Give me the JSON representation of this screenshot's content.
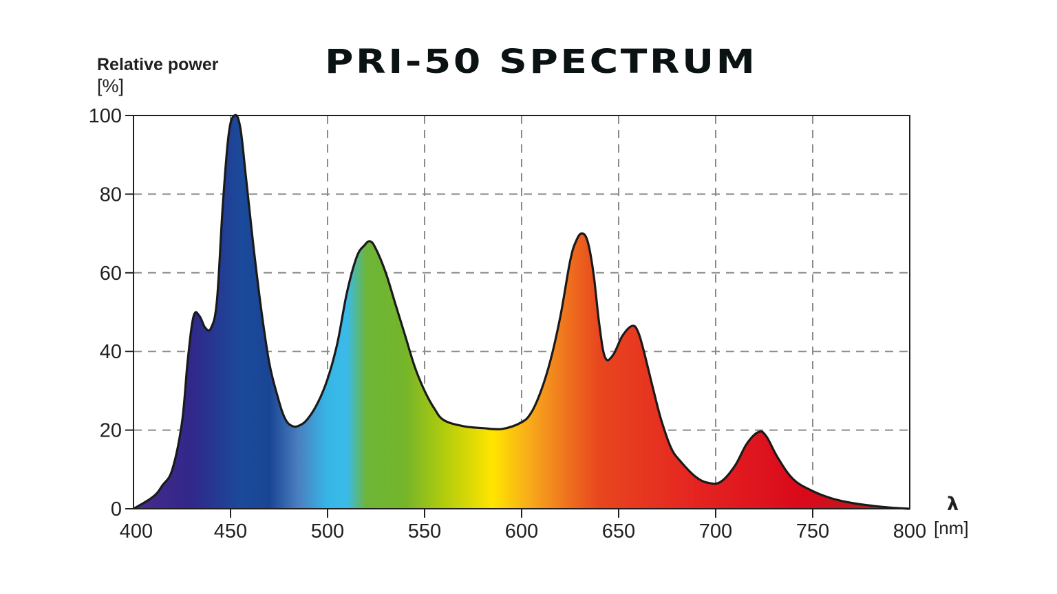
{
  "chart": {
    "title": "PRI-50 SPECTRUM",
    "ylabel": "Relative power",
    "yunit": "[%]",
    "xsymbol": "λ",
    "xunit": "[nm]"
  },
  "colors": {
    "outline": "#1a1a1a",
    "grid": "#8a8a8a",
    "spectrum_stops": [
      {
        "nm": 400,
        "color": "#4a2a8c"
      },
      {
        "nm": 430,
        "color": "#30288a"
      },
      {
        "nm": 455,
        "color": "#1b4a9a"
      },
      {
        "nm": 470,
        "color": "#1a4595"
      },
      {
        "nm": 485,
        "color": "#4a7fc0"
      },
      {
        "nm": 500,
        "color": "#36b6e6"
      },
      {
        "nm": 510,
        "color": "#3abbe8"
      },
      {
        "nm": 520,
        "color": "#6db538"
      },
      {
        "nm": 540,
        "color": "#74b52a"
      },
      {
        "nm": 560,
        "color": "#b1cc0c"
      },
      {
        "nm": 585,
        "color": "#ffe500"
      },
      {
        "nm": 605,
        "color": "#f7a81b"
      },
      {
        "nm": 625,
        "color": "#ee6e1e"
      },
      {
        "nm": 640,
        "color": "#e8461f"
      },
      {
        "nm": 690,
        "color": "#e52421"
      },
      {
        "nm": 745,
        "color": "#d9091b"
      },
      {
        "nm": 800,
        "color": "#a82a1f"
      }
    ]
  },
  "chart_data": {
    "type": "area",
    "title": "PRI-50 SPECTRUM",
    "xlabel": "λ [nm]",
    "ylabel": "Relative power [%]",
    "xlim": [
      400,
      800
    ],
    "ylim": [
      0,
      100
    ],
    "xticks": [
      400,
      450,
      500,
      550,
      600,
      650,
      700,
      750,
      800
    ],
    "yticks": [
      0,
      20,
      40,
      60,
      80,
      100
    ],
    "grid": "dashed",
    "legend": null,
    "x": [
      400,
      410,
      415,
      420,
      425,
      428,
      431,
      434,
      437,
      440,
      443,
      446,
      449,
      452,
      455,
      458,
      462,
      466,
      470,
      474,
      478,
      482,
      486,
      490,
      495,
      500,
      505,
      510,
      515,
      519,
      522,
      525,
      530,
      535,
      540,
      545,
      550,
      555,
      560,
      570,
      580,
      590,
      600,
      605,
      610,
      615,
      620,
      625,
      628,
      631,
      634,
      637,
      640,
      643,
      647,
      652,
      657,
      660,
      663,
      668,
      672,
      677,
      682,
      690,
      697,
      703,
      710,
      716,
      722,
      726,
      732,
      740,
      750,
      760,
      770,
      780,
      790,
      800
    ],
    "values": [
      0,
      3,
      6,
      10,
      22,
      38,
      49,
      49,
      46,
      46,
      53,
      77,
      95,
      100,
      97,
      84,
      66,
      50,
      37,
      29,
      23,
      21,
      21.3,
      23,
      27,
      33,
      42,
      55,
      64,
      67,
      68,
      66,
      60,
      52,
      44,
      36,
      30,
      25.5,
      22.5,
      21,
      20.5,
      20.3,
      22,
      24.5,
      30,
      38,
      49,
      63,
      68,
      70,
      68,
      60,
      47,
      38.5,
      39,
      44,
      46.5,
      45,
      40,
      30,
      22.5,
      15.5,
      12,
      8,
      6.5,
      7,
      11,
      16.5,
      19.5,
      18.5,
      13,
      7.5,
      4.5,
      2.6,
      1.5,
      0.8,
      0.3,
      0
    ]
  }
}
